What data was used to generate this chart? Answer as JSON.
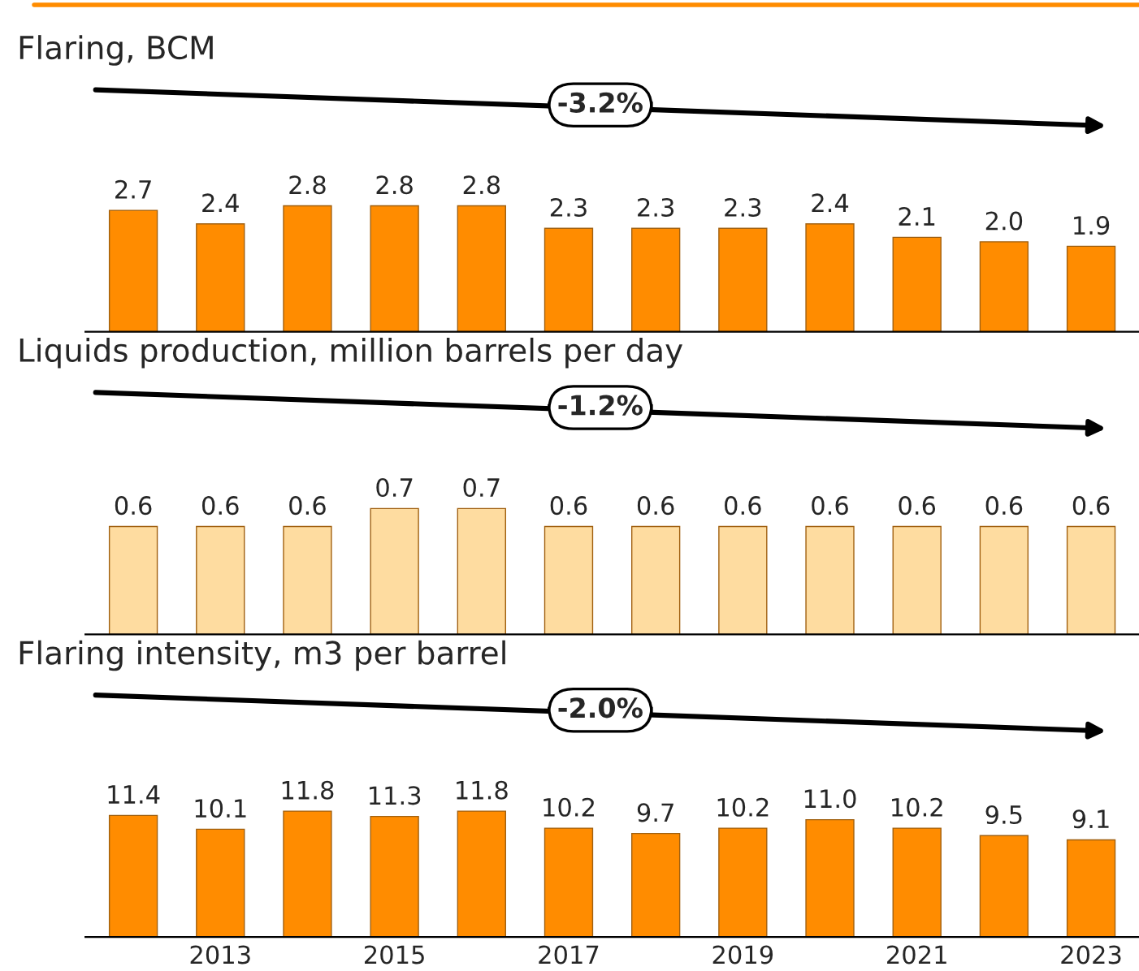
{
  "chart_data": [
    {
      "type": "bar",
      "title": "Flaring, BCM",
      "categories": [
        null,
        "2013",
        null,
        "2015",
        null,
        "2017",
        null,
        "2019",
        null,
        "2021",
        null,
        "2023"
      ],
      "values": [
        2.7,
        2.4,
        2.8,
        2.8,
        2.8,
        2.3,
        2.3,
        2.3,
        2.4,
        2.1,
        2.0,
        1.9
      ],
      "color": "#ff8c00",
      "value_labels": [
        "2.7",
        "2.4",
        "2.8",
        "2.8",
        "2.8",
        "2.3",
        "2.3",
        "2.3",
        "2.4",
        "2.1",
        "2.0",
        "1.9"
      ],
      "tick_labels": false,
      "annotations": [
        "-3.2%"
      ]
    },
    {
      "type": "bar",
      "title": "Liquids production, million barrels per day",
      "categories": [
        null,
        "2013",
        null,
        "2015",
        null,
        "2017",
        null,
        "2019",
        null,
        "2021",
        null,
        "2023"
      ],
      "values": [
        0.6,
        0.6,
        0.6,
        0.7,
        0.7,
        0.6,
        0.6,
        0.6,
        0.6,
        0.6,
        0.6,
        0.6
      ],
      "color": "#fedca0",
      "data_labels": true,
      "tick_labels": false,
      "annotations": [
        "-1.2%"
      ]
    },
    {
      "type": "bar",
      "title": "Flaring intensity, m3 per barrel",
      "categories": [
        null,
        "2013",
        null,
        "2015",
        null,
        "2017",
        null,
        "2019",
        null,
        "2021",
        null,
        "2023"
      ],
      "values": [
        11.4,
        10.1,
        11.8,
        11.3,
        11.8,
        10.2,
        9.7,
        10.2,
        11.0,
        10.2,
        9.5,
        9.1
      ],
      "color": "#ff8c00",
      "value_labels": [
        "11.4",
        "10.1",
        "11.8",
        "11.3",
        "11.8",
        "10.2",
        "9.7",
        "10.2",
        "11.0",
        "10.2",
        "9.5",
        "9.1"
      ],
      "tick_labels": "x",
      "annotations": [
        "-2.0%"
      ]
    }
  ]
}
